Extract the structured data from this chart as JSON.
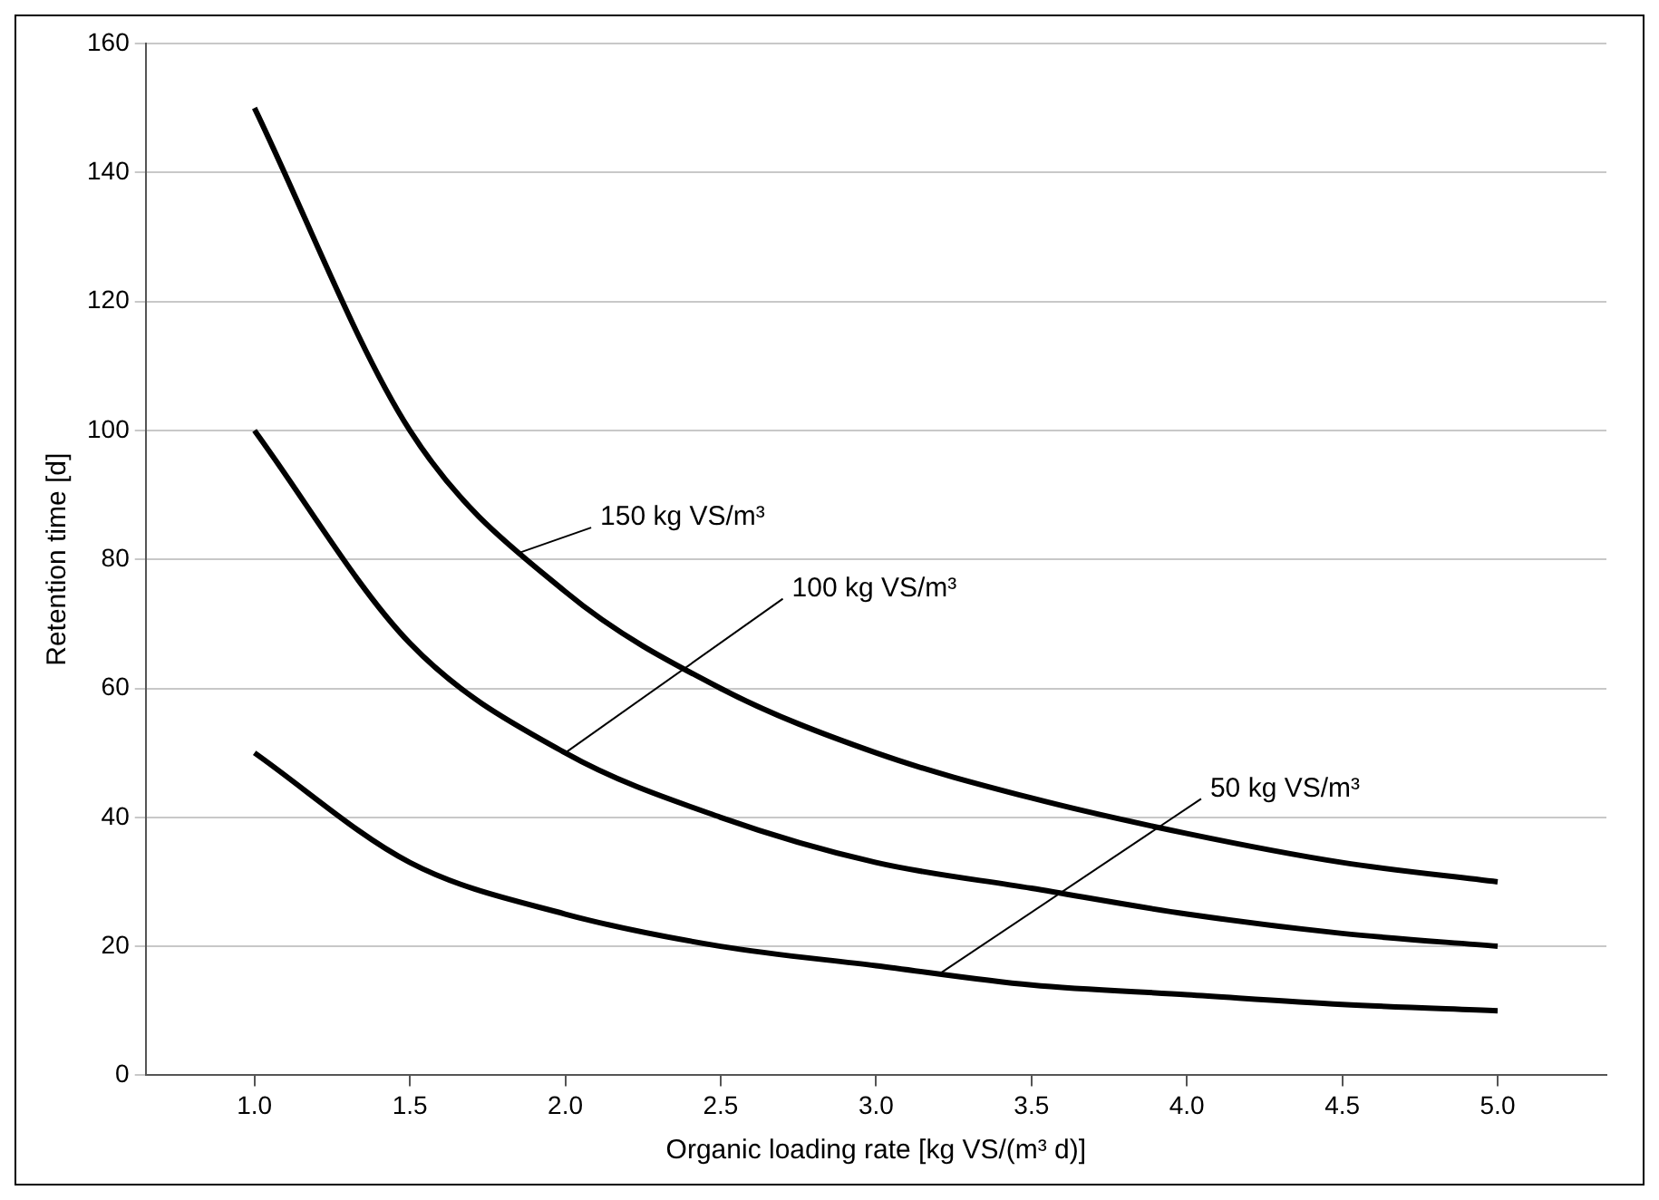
{
  "chart_data": {
    "type": "line",
    "xlabel": "Organic loading rate [kg VS/(m³ d)]",
    "ylabel": "Retention time [d]",
    "x": [
      1.0,
      1.5,
      2.0,
      2.5,
      3.0,
      3.5,
      4.0,
      4.5,
      5.0
    ],
    "series": [
      {
        "color": "#000000",
        "values": [
          150,
          100,
          75,
          60,
          50,
          43,
          37.5,
          33,
          30
        ]
      },
      {
        "color": "#000000",
        "values": [
          100,
          67,
          50,
          40,
          33,
          29,
          25,
          22,
          20
        ]
      },
      {
        "color": "#000000",
        "values": [
          50,
          33,
          25,
          20,
          17,
          14,
          12.5,
          11,
          10
        ]
      }
    ],
    "xlim": [
      0.65,
      5.35
    ],
    "xticks": [
      {
        "value": 1,
        "label": "1.0"
      },
      {
        "value": 1.5,
        "label": "1.5"
      },
      {
        "value": 2,
        "label": "2.0"
      },
      {
        "value": 2.5,
        "label": "2.5"
      },
      {
        "value": 3,
        "label": "3.0"
      },
      {
        "value": 3.5,
        "label": "3.5"
      },
      {
        "value": 4,
        "label": "4.0"
      },
      {
        "value": 4.5,
        "label": "4.5"
      },
      {
        "value": 5,
        "label": "5.0"
      }
    ],
    "ylim": [
      0,
      160
    ],
    "yticks": [
      0,
      20,
      40,
      60,
      80,
      100,
      120,
      140,
      160
    ],
    "grid": "y",
    "legend": false,
    "marker": "none",
    "line_style": "solid",
    "annotations": [
      {
        "text": "150 kg VS/m³",
        "x": 1.85,
        "y": 81
      },
      {
        "text": "100 kg VS/m³",
        "x": 2.0,
        "y": 50
      },
      {
        "text": "50 kg VS/m³",
        "x": 3.2,
        "y": 15.6
      }
    ]
  }
}
